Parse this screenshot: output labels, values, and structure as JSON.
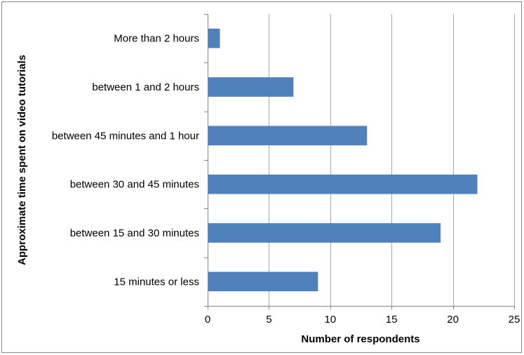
{
  "chart_data": {
    "type": "bar",
    "orientation": "horizontal",
    "categories": [
      "15 minutes or less",
      "between 15 and 30 minutes",
      "between 30 and 45 minutes",
      "between 45 minutes and 1 hour",
      "between 1 and 2 hours",
      "More than 2 hours"
    ],
    "values": [
      9,
      19,
      22,
      13,
      7,
      1
    ],
    "title": "",
    "xlabel": "Number of respondents",
    "ylabel": "Approximate time spent on video tutorials",
    "xlim": [
      0,
      25
    ],
    "xticks": [
      "0",
      "5",
      "10",
      "15",
      "20",
      "25"
    ],
    "grid": true,
    "legend": "none",
    "colors": {
      "bar": "#4F81BD",
      "grid": "#A6A6A6",
      "axis": "#868686",
      "frame": "#8A8A8A"
    }
  }
}
